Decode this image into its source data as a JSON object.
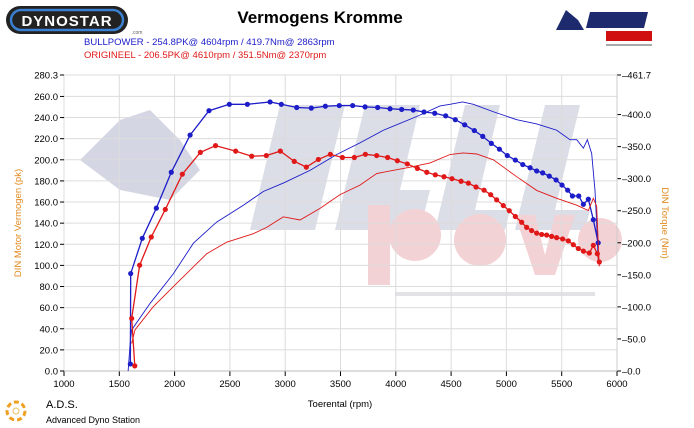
{
  "header": {
    "title": "Vermogens Kromme",
    "left_logo": "DYNOSTAR.com",
    "right_logo": "BULL power CHIP TUNING"
  },
  "legend": [
    {
      "text": "BULLPOWER  - 254.8PK@ 4604rpm / 419.7Nm@ 2863rpm",
      "color": "#1c1cc8"
    },
    {
      "text": "ORIGINEEL  - 206.5PK@ 4610rpm / 351.5Nm@ 2370rpm",
      "color": "#e01818"
    }
  ],
  "footer": {
    "brand": "A.D.S.",
    "subtitle": "Advanced Dyno Station"
  },
  "watermark": "BULL power CHIP TUNING",
  "chart_data": {
    "type": "line",
    "title": "Vermogens Kromme",
    "xlabel": "Toerental (rpm)",
    "ylabel": "DIN Motor Vermogen (pk)",
    "y2label": "DIN Torque (Nm)",
    "xlim": [
      1000,
      6000
    ],
    "ylim": [
      0,
      280.3
    ],
    "y2lim": [
      0,
      461.7
    ],
    "xticks": [
      "1000",
      "1500",
      "2000",
      "2500",
      "3000",
      "3500",
      "4000",
      "4500",
      "5000",
      "5500",
      "6000"
    ],
    "yticks": [
      "0.0",
      "20.0",
      "40.0",
      "60.0",
      "80.0",
      "100.0",
      "120.0",
      "140.0",
      "160.0",
      "180.0",
      "200.0",
      "220.0",
      "240.0",
      "260.0",
      "280.3"
    ],
    "y2ticks": [
      "0.0",
      "50.0",
      "100.0",
      "150.0",
      "200.0",
      "250.0",
      "300.0",
      "350.0",
      "400.0",
      "461.7"
    ],
    "grid": true,
    "axis_color": "#e08a1e",
    "series": [
      {
        "name": "BULLPOWER",
        "kind": "power",
        "axis": "left",
        "color": "#1c1cc8",
        "x": [
          1580,
          1600,
          1612,
          1778,
          1988,
          2170,
          2380,
          2622,
          2802,
          2983,
          3224,
          3466,
          3676,
          3888,
          4189,
          4400,
          4490,
          4604,
          4701,
          4882,
          5093,
          5274,
          5455,
          5575,
          5636,
          5696,
          5732,
          5771,
          5801,
          5816,
          5830
        ],
        "y": [
          0,
          29,
          39,
          64,
          92,
          121,
          141,
          157,
          170,
          178,
          190,
          205,
          216,
          228,
          241,
          251,
          252.5,
          254.8,
          252.5,
          245.5,
          238,
          234,
          228,
          219,
          219,
          211,
          219,
          206,
          171,
          140,
          105
        ]
      },
      {
        "name": "BULLPOWER",
        "kind": "torque",
        "axis": "right",
        "color": "#1c1cc8",
        "x": [
          1600,
          1603,
          1708,
          1835,
          1970,
          2140,
          2311,
          2495,
          2658,
          2863,
          2965,
          3104,
          3236,
          3363,
          3489,
          3610,
          3722,
          3836,
          3948,
          4053,
          4158,
          4255,
          4352,
          4451,
          4538,
          4623,
          4710,
          4786,
          4864,
          4937,
          5008,
          5081,
          5148,
          5214,
          5274,
          5328,
          5388,
          5449,
          5503,
          5554,
          5597,
          5654,
          5696,
          5741,
          5786,
          5830
        ],
        "y": [
          11,
          152,
          207,
          254,
          310,
          368,
          406,
          416,
          416,
          419.7,
          416,
          411,
          410,
          413,
          414,
          414,
          412,
          411,
          409,
          408,
          407,
          404,
          402,
          398,
          392,
          384,
          375,
          366,
          355,
          346,
          336,
          329,
          322,
          317,
          312,
          309,
          304,
          298,
          290,
          282,
          273,
          273,
          260,
          268,
          236,
          200
        ]
      },
      {
        "name": "ORIGINEEL",
        "kind": "power",
        "axis": "left",
        "color": "#e01818",
        "x": [
          1612,
          1642,
          1808,
          2019,
          2290,
          2471,
          2712,
          2832,
          2983,
          3134,
          3315,
          3496,
          3676,
          3827,
          4129,
          4310,
          4490,
          4610,
          4731,
          4882,
          5093,
          5274,
          5455,
          5636,
          5741,
          5786,
          5816,
          5840
        ],
        "y": [
          26,
          39,
          61,
          83,
          111,
          122,
          130,
          136,
          146,
          143,
          154,
          167,
          176,
          187,
          193,
          197,
          205,
          206.5,
          205.5,
          200,
          184,
          171,
          163.5,
          157,
          152,
          163.5,
          156,
          99
        ]
      },
      {
        "name": "ORIGINEEL",
        "kind": "torque",
        "axis": "right",
        "color": "#e01818",
        "x": [
          1640,
          1612,
          1684,
          1789,
          1916,
          2070,
          2233,
          2370,
          2552,
          2697,
          2829,
          2956,
          3082,
          3191,
          3300,
          3408,
          3517,
          3625,
          3725,
          3827,
          3926,
          4014,
          4104,
          4195,
          4280,
          4357,
          4436,
          4508,
          4590,
          4656,
          4725,
          4798,
          4858,
          4912,
          4972,
          5026,
          5081,
          5138,
          5183,
          5228,
          5274,
          5319,
          5364,
          5409,
          5454,
          5508,
          5560,
          5605,
          5650,
          5696,
          5750,
          5786,
          5822,
          5840
        ],
        "y": [
          8,
          82,
          165,
          209,
          252,
          307,
          341,
          351.5,
          343,
          335,
          336,
          343,
          327,
          318,
          330,
          338,
          333,
          333,
          338,
          336,
          333,
          328,
          323,
          316,
          310,
          306,
          303,
          300,
          296,
          293,
          287,
          282,
          275,
          267,
          258,
          250,
          241,
          232,
          224,
          219,
          215,
          213,
          212,
          210,
          208,
          206,
          203,
          197,
          191,
          187,
          184,
          196,
          183,
          170
        ]
      }
    ]
  }
}
